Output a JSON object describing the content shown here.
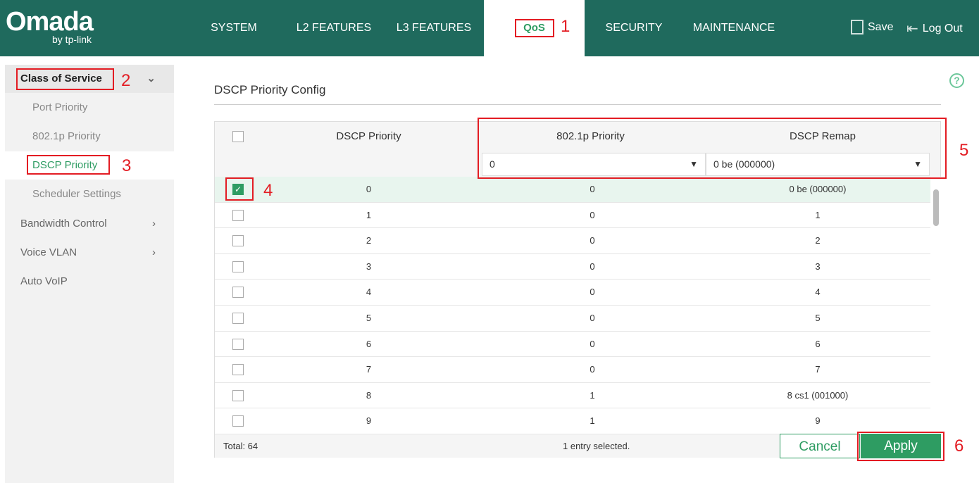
{
  "header": {
    "logo": "Omada",
    "logo_sub": "by tp-link",
    "nav": [
      "SYSTEM",
      "L2 FEATURES",
      "L3 FEATURES",
      "QoS",
      "SECURITY",
      "MAINTENANCE"
    ],
    "active": "QoS",
    "save": "Save",
    "logout": "Log Out"
  },
  "sidebar": {
    "items": [
      {
        "label": "Class of Service"
      },
      {
        "label": "Port Priority"
      },
      {
        "label": "802.1p Priority"
      },
      {
        "label": "DSCP Priority",
        "selected": true
      },
      {
        "label": "Scheduler Settings"
      },
      {
        "label": "Bandwidth Control"
      },
      {
        "label": "Voice VLAN"
      },
      {
        "label": "Auto VoIP"
      }
    ]
  },
  "main": {
    "title": "DSCP Priority Config",
    "help": "?",
    "table": {
      "columns": [
        "DSCP Priority",
        "802.1p Priority",
        "DSCP Remap"
      ],
      "filter_8021p": "0",
      "filter_remap": "0 be (000000)",
      "rows": [
        [
          "0",
          "0",
          "0 be (000000)",
          true
        ],
        [
          "1",
          "0",
          "1",
          false
        ],
        [
          "2",
          "0",
          "2",
          false
        ],
        [
          "3",
          "0",
          "3",
          false
        ],
        [
          "4",
          "0",
          "4",
          false
        ],
        [
          "5",
          "0",
          "5",
          false
        ],
        [
          "6",
          "0",
          "6",
          false
        ],
        [
          "7",
          "0",
          "7",
          false
        ],
        [
          "8",
          "1",
          "8 cs1 (001000)",
          false
        ],
        [
          "9",
          "1",
          "9",
          false
        ]
      ],
      "total": "Total: 64",
      "selected": "1 entry selected."
    },
    "cancel": "Cancel",
    "apply": "Apply"
  },
  "annotations": [
    "1",
    "2",
    "3",
    "4",
    "5",
    "6"
  ],
  "colors": {
    "header": "#1f6a5d",
    "accent": "#2e9c62",
    "annotation": "#e31c23"
  }
}
